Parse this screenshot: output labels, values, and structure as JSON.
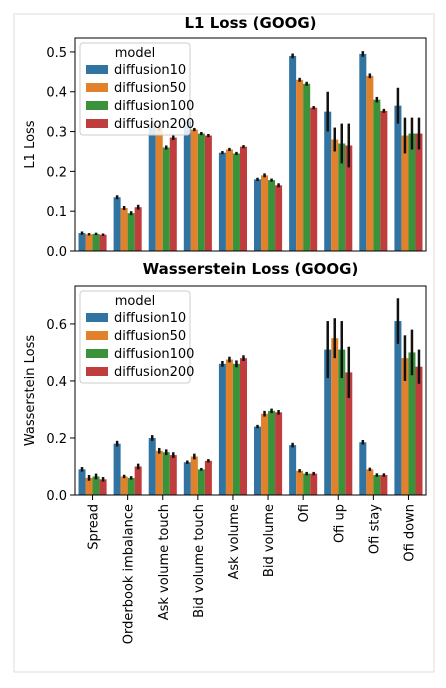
{
  "chart_data": [
    {
      "type": "bar",
      "title": "L1 Loss (GOOG)",
      "ylabel": "L1 Loss",
      "ylim": [
        0,
        0.535
      ],
      "yticks": [
        {
          "value": 0,
          "label": "0.0"
        },
        0.1,
        0.2,
        0.3,
        0.4,
        0.5
      ],
      "legend_title": "model",
      "legend": "upper left",
      "series": [
        {
          "name": "diffusion10",
          "color": "#3274a1",
          "values": [
            0.045,
            0.135,
            0.32,
            0.325,
            0.247,
            0.18,
            0.49,
            0.35,
            0.495,
            0.365
          ],
          "errors": [
            0.004,
            0.005,
            0.008,
            0.004,
            0.004,
            0.004,
            0.006,
            0.05,
            0.007,
            0.045
          ]
        },
        {
          "name": "diffusion50",
          "color": "#e1812c",
          "values": [
            0.042,
            0.108,
            0.31,
            0.305,
            0.255,
            0.19,
            0.43,
            0.28,
            0.44,
            0.29
          ],
          "errors": [
            0.003,
            0.005,
            0.008,
            0.004,
            0.004,
            0.005,
            0.005,
            0.03,
            0.006,
            0.045
          ]
        },
        {
          "name": "diffusion100",
          "color": "#3a923a",
          "values": [
            0.043,
            0.095,
            0.26,
            0.295,
            0.245,
            0.178,
            0.42,
            0.27,
            0.38,
            0.295
          ],
          "errors": [
            0.003,
            0.005,
            0.005,
            0.004,
            0.004,
            0.004,
            0.005,
            0.05,
            0.007,
            0.04
          ]
        },
        {
          "name": "diffusion200",
          "color": "#c03d3e",
          "values": [
            0.041,
            0.11,
            0.285,
            0.29,
            0.262,
            0.165,
            0.36,
            0.265,
            0.352,
            0.295
          ],
          "errors": [
            0.003,
            0.006,
            0.006,
            0.004,
            0.004,
            0.005,
            0.004,
            0.055,
            0.005,
            0.04
          ]
        }
      ]
    },
    {
      "type": "bar",
      "title": "Wasserstein Loss (GOOG)",
      "ylabel": "Wasserstein Loss",
      "categories": [
        "Spread",
        "Orderbook imbalance",
        "Ask volume touch",
        "Bid volume touch",
        "Ask volume",
        "Bid volume",
        "Ofi",
        "Ofi up",
        "Ofi stay",
        "Ofi down"
      ],
      "ylim": [
        0,
        0.733
      ],
      "yticks": [
        {
          "value": 0,
          "label": "0.0"
        },
        0.2,
        0.4,
        0.6
      ],
      "legend_title": "model",
      "legend": "upper left",
      "series": [
        {
          "name": "diffusion10",
          "color": "#3274a1",
          "values": [
            0.09,
            0.18,
            0.2,
            0.115,
            0.46,
            0.24,
            0.175,
            0.51,
            0.185,
            0.61
          ],
          "errors": [
            0.008,
            0.01,
            0.01,
            0.006,
            0.01,
            0.006,
            0.008,
            0.1,
            0.008,
            0.08
          ]
        },
        {
          "name": "diffusion50",
          "color": "#e1812c",
          "values": [
            0.06,
            0.065,
            0.155,
            0.135,
            0.475,
            0.285,
            0.085,
            0.55,
            0.09,
            0.48
          ],
          "errors": [
            0.01,
            0.006,
            0.01,
            0.01,
            0.01,
            0.01,
            0.006,
            0.07,
            0.006,
            0.08
          ]
        },
        {
          "name": "diffusion100",
          "color": "#3a923a",
          "values": [
            0.065,
            0.06,
            0.15,
            0.09,
            0.46,
            0.295,
            0.075,
            0.51,
            0.07,
            0.5
          ],
          "errors": [
            0.01,
            0.006,
            0.01,
            0.005,
            0.012,
            0.008,
            0.006,
            0.1,
            0.006,
            0.08
          ]
        },
        {
          "name": "diffusion200",
          "color": "#c03d3e",
          "values": [
            0.055,
            0.1,
            0.14,
            0.12,
            0.48,
            0.29,
            0.075,
            0.43,
            0.07,
            0.45
          ],
          "errors": [
            0.008,
            0.01,
            0.01,
            0.006,
            0.01,
            0.008,
            0.006,
            0.09,
            0.006,
            0.06
          ]
        }
      ]
    }
  ]
}
